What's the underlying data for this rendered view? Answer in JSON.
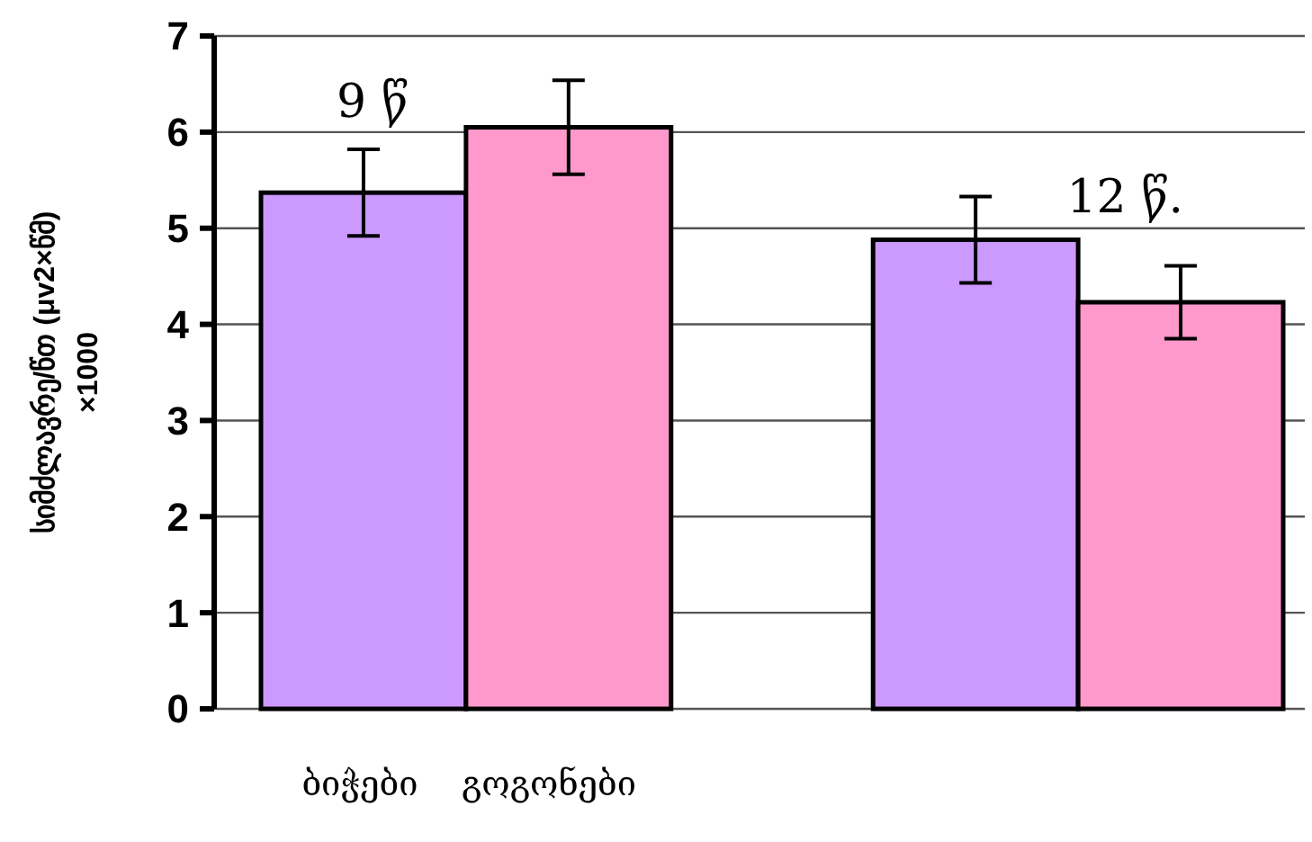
{
  "chart_data": {
    "type": "bar",
    "ylabel": "სიმძლავრე/წთ  (μv2×წმ)\n×1000",
    "categories": [
      null,
      null
    ],
    "series": [
      {
        "name": "ბიჭები",
        "color": "#cc99ff",
        "values": [
          5.37,
          4.88
        ],
        "errors": [
          0.45,
          0.45
        ]
      },
      {
        "name": "გოგონები",
        "color": "#ff99cc",
        "values": [
          6.05,
          4.23
        ],
        "errors": [
          0.49,
          0.38
        ]
      }
    ],
    "annotations": [
      "9  წ",
      "12  წ."
    ],
    "ylim": [
      0,
      7
    ],
    "yticks": [
      0,
      1,
      2,
      3,
      4,
      5,
      6,
      7
    ],
    "grid": "y",
    "legend": "bottom"
  }
}
